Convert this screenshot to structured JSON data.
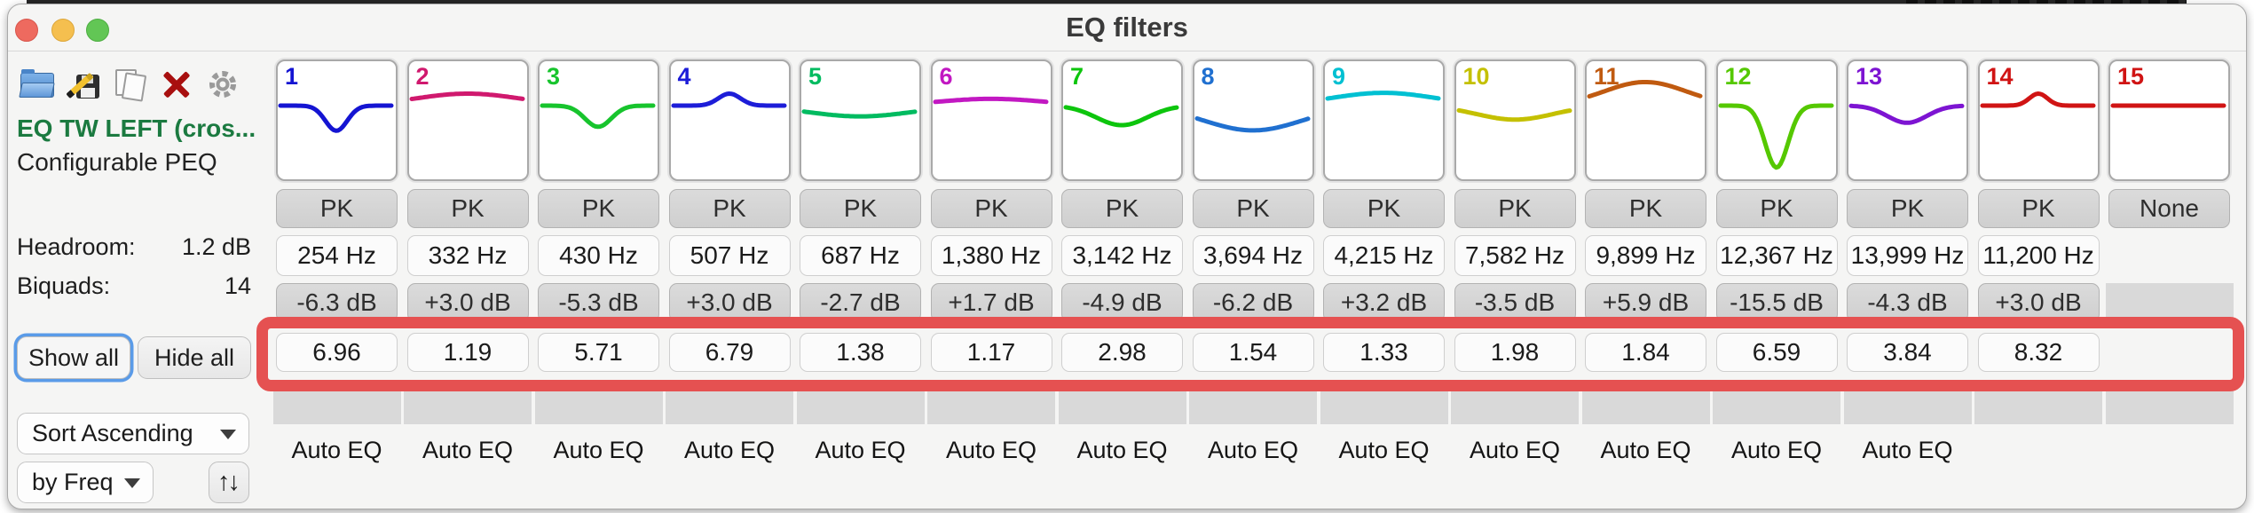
{
  "window": {
    "title": "EQ filters"
  },
  "titlebar": {
    "traffic_lights": [
      "close",
      "minimize",
      "zoom"
    ]
  },
  "toolbar": {
    "icons": [
      "open-folder",
      "save",
      "copy",
      "delete",
      "settings"
    ]
  },
  "sidebar": {
    "preset_name": "EQ TW LEFT (cros...",
    "preset_type": "Configurable PEQ",
    "headroom_label": "Headroom:",
    "headroom_value": "1.2 dB",
    "biquads_label": "Biquads:",
    "biquads_value": "14",
    "show_all_label": "Show all",
    "hide_all_label": "Hide all",
    "sort_mode": "Sort Ascending",
    "sort_key": "by Freq",
    "sort_toggle_icon": "↑↓"
  },
  "columns": {
    "auto_eq_label": "Auto EQ"
  },
  "filters": [
    {
      "number": "1",
      "color": "#1414d2",
      "type": "PK",
      "freq": "254 Hz",
      "gain": "-6.3 dB",
      "q": "6.96",
      "auto_eq": true
    },
    {
      "number": "2",
      "color": "#d0196e",
      "type": "PK",
      "freq": "332 Hz",
      "gain": "+3.0 dB",
      "q": "1.19",
      "auto_eq": true
    },
    {
      "number": "3",
      "color": "#17c42d",
      "type": "PK",
      "freq": "430 Hz",
      "gain": "-5.3 dB",
      "q": "5.71",
      "auto_eq": true
    },
    {
      "number": "4",
      "color": "#1d1dd8",
      "type": "PK",
      "freq": "507 Hz",
      "gain": "+3.0 dB",
      "q": "6.79",
      "auto_eq": true
    },
    {
      "number": "5",
      "color": "#00bb60",
      "type": "PK",
      "freq": "687 Hz",
      "gain": "-2.7 dB",
      "q": "1.38",
      "auto_eq": true
    },
    {
      "number": "6",
      "color": "#c218c2",
      "type": "PK",
      "freq": "1,380 Hz",
      "gain": "+1.7 dB",
      "q": "1.17",
      "auto_eq": true
    },
    {
      "number": "7",
      "color": "#0dc50d",
      "type": "PK",
      "freq": "3,142 Hz",
      "gain": "-4.9 dB",
      "q": "2.98",
      "auto_eq": true
    },
    {
      "number": "8",
      "color": "#2070d0",
      "type": "PK",
      "freq": "3,694 Hz",
      "gain": "-6.2 dB",
      "q": "1.54",
      "auto_eq": true
    },
    {
      "number": "9",
      "color": "#00c0d2",
      "type": "PK",
      "freq": "4,215 Hz",
      "gain": "+3.2 dB",
      "q": "1.33",
      "auto_eq": true
    },
    {
      "number": "10",
      "color": "#c4c000",
      "type": "PK",
      "freq": "7,582 Hz",
      "gain": "-3.5 dB",
      "q": "1.98",
      "auto_eq": true
    },
    {
      "number": "11",
      "color": "#c05a10",
      "type": "PK",
      "freq": "9,899 Hz",
      "gain": "+5.9 dB",
      "q": "1.84",
      "auto_eq": true
    },
    {
      "number": "12",
      "color": "#55c800",
      "type": "PK",
      "freq": "12,367 Hz",
      "gain": "-15.5 dB",
      "q": "6.59",
      "auto_eq": true
    },
    {
      "number": "13",
      "color": "#7d14d2",
      "type": "PK",
      "freq": "13,999 Hz",
      "gain": "-4.3 dB",
      "q": "3.84",
      "auto_eq": true
    },
    {
      "number": "14",
      "color": "#d01414",
      "type": "PK",
      "freq": "11,200 Hz",
      "gain": "+3.0 dB",
      "q": "8.32",
      "auto_eq": false
    },
    {
      "number": "15",
      "color": "#d01414",
      "type": "None",
      "freq": null,
      "gain": null,
      "q": null,
      "auto_eq": false
    }
  ],
  "annotation": {
    "highlighted_row": "Q values",
    "highlight_color": "#e55151"
  }
}
